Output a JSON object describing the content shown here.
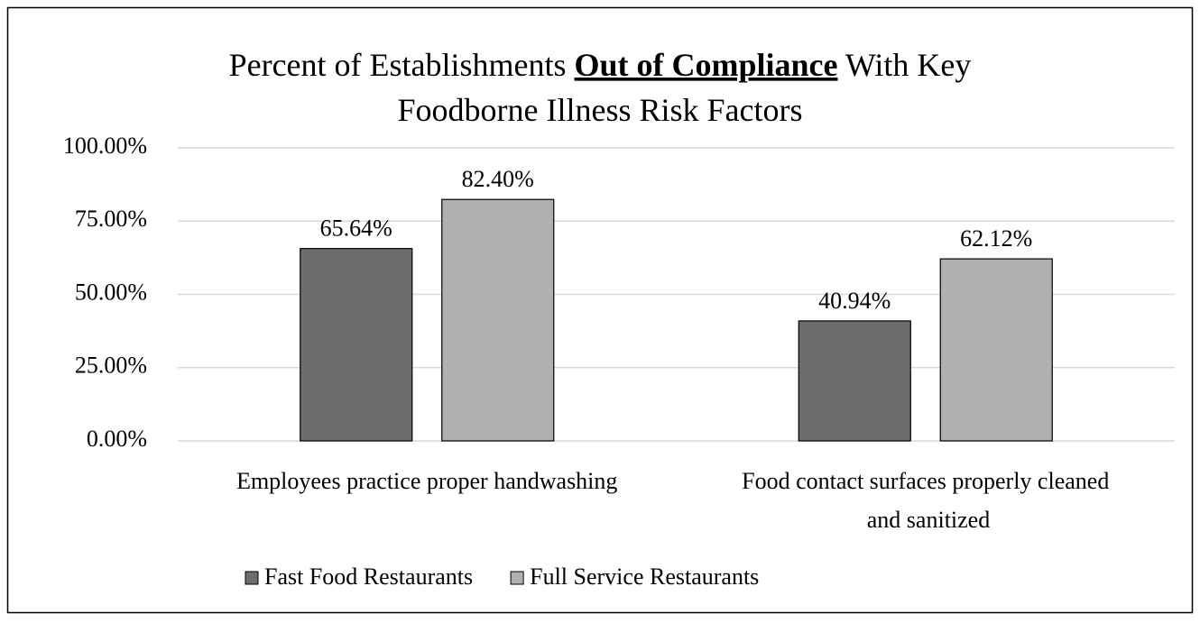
{
  "chart_data": {
    "type": "bar",
    "title": [
      "Percent of Establishments",
      "Out of Compliance",
      "With Key",
      "Foodborne Illness Risk Factors"
    ],
    "categories": [
      "Employees practice proper handwashing",
      "Food contact surfaces properly cleaned and sanitized"
    ],
    "series": [
      {
        "name": "Fast Food Restaurants",
        "color": "#6d6d6d",
        "values": [
          65.64,
          40.94
        ],
        "value_labels": [
          "65.64%",
          "40.94%"
        ]
      },
      {
        "name": "Full Service Restaurants",
        "color": "#b0b0b0",
        "values": [
          82.4,
          62.12
        ],
        "value_labels": [
          "82.40%",
          "62.12%"
        ]
      }
    ],
    "ylim": [
      0,
      100
    ],
    "yticks": [
      {
        "value": 0,
        "label": "0.00%"
      },
      {
        "value": 25,
        "label": "25.00%"
      },
      {
        "value": 50,
        "label": "50.00%"
      },
      {
        "value": 75,
        "label": "75.00%"
      },
      {
        "value": 100,
        "label": "100.00%"
      }
    ],
    "grid": true,
    "legend": "bottom"
  }
}
